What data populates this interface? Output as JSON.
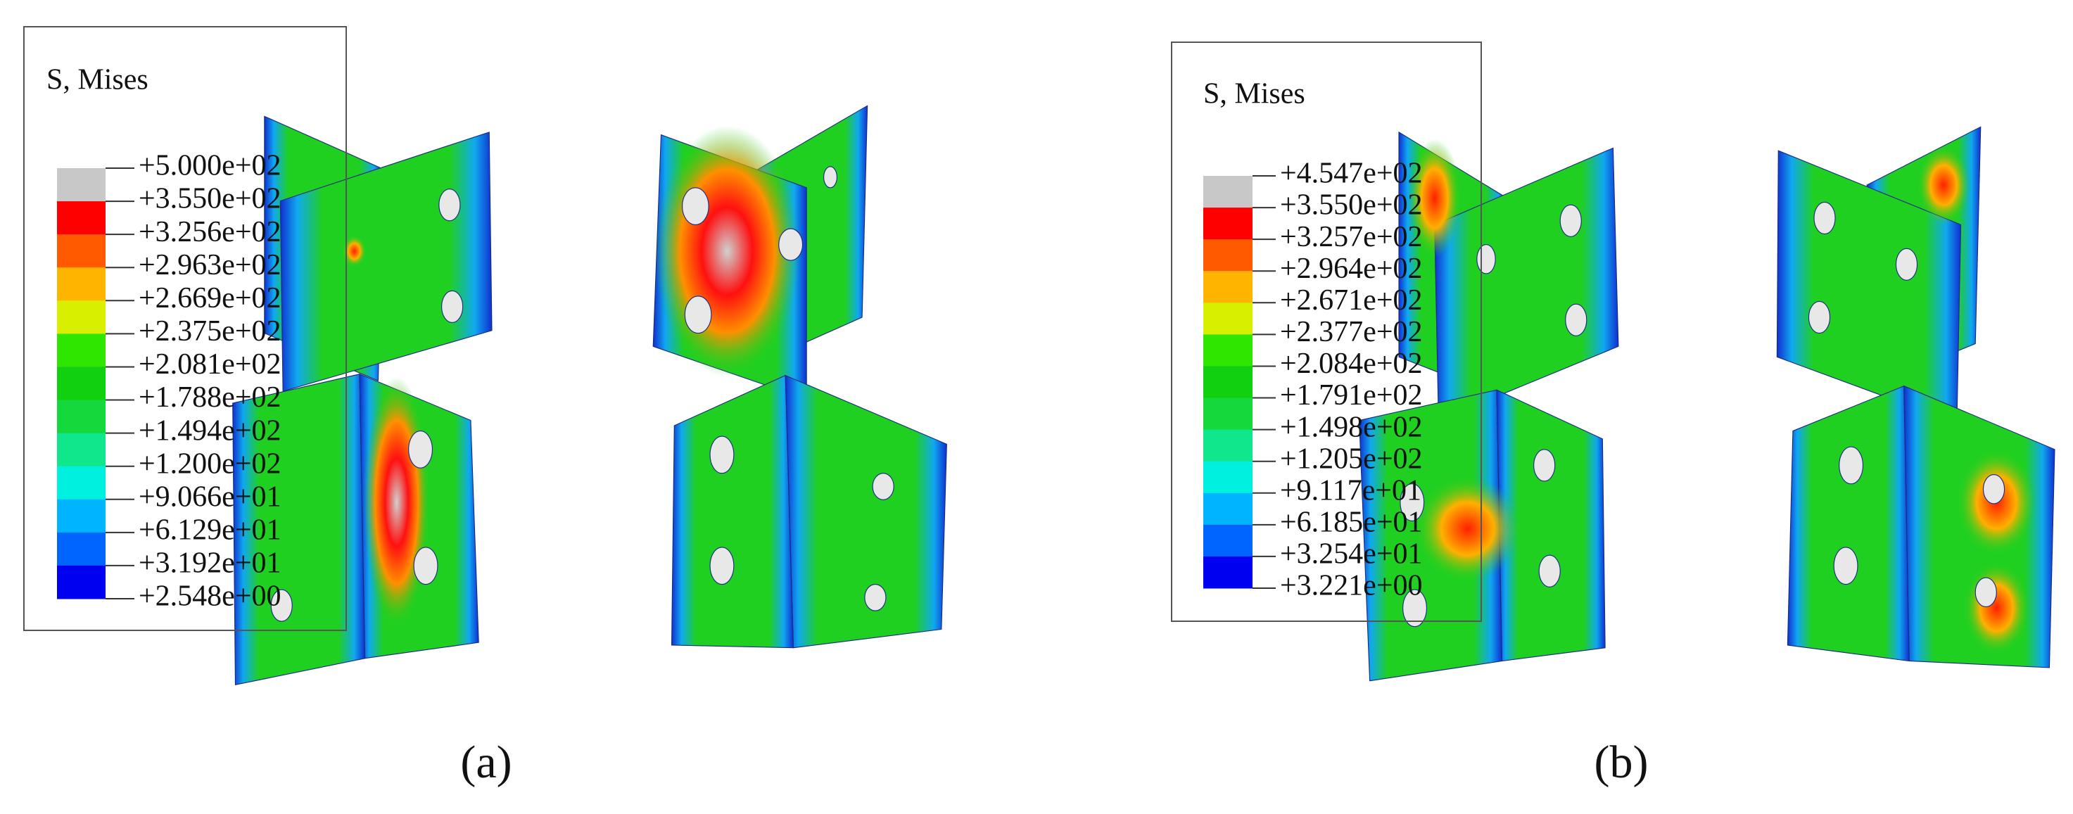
{
  "panels": [
    {
      "legend": {
        "title": "S, Mises",
        "labels": [
          "+5.000e+02",
          "+3.550e+02",
          "+3.256e+02",
          "+2.963e+02",
          "+2.669e+02",
          "+2.375e+02",
          "+2.081e+02",
          "+1.788e+02",
          "+1.494e+02",
          "+1.200e+02",
          "+9.066e+01",
          "+6.129e+01",
          "+3.192e+01",
          "+2.548e+00"
        ]
      },
      "caption": "(a)"
    },
    {
      "legend": {
        "title": "S, Mises",
        "labels": [
          "+4.547e+02",
          "+3.550e+02",
          "+3.257e+02",
          "+2.964e+02",
          "+2.671e+02",
          "+2.377e+02",
          "+2.084e+02",
          "+1.791e+02",
          "+1.498e+02",
          "+1.205e+02",
          "+9.117e+01",
          "+6.185e+01",
          "+3.254e+01",
          "+3.221e+00"
        ]
      },
      "caption": "(b)"
    }
  ]
}
